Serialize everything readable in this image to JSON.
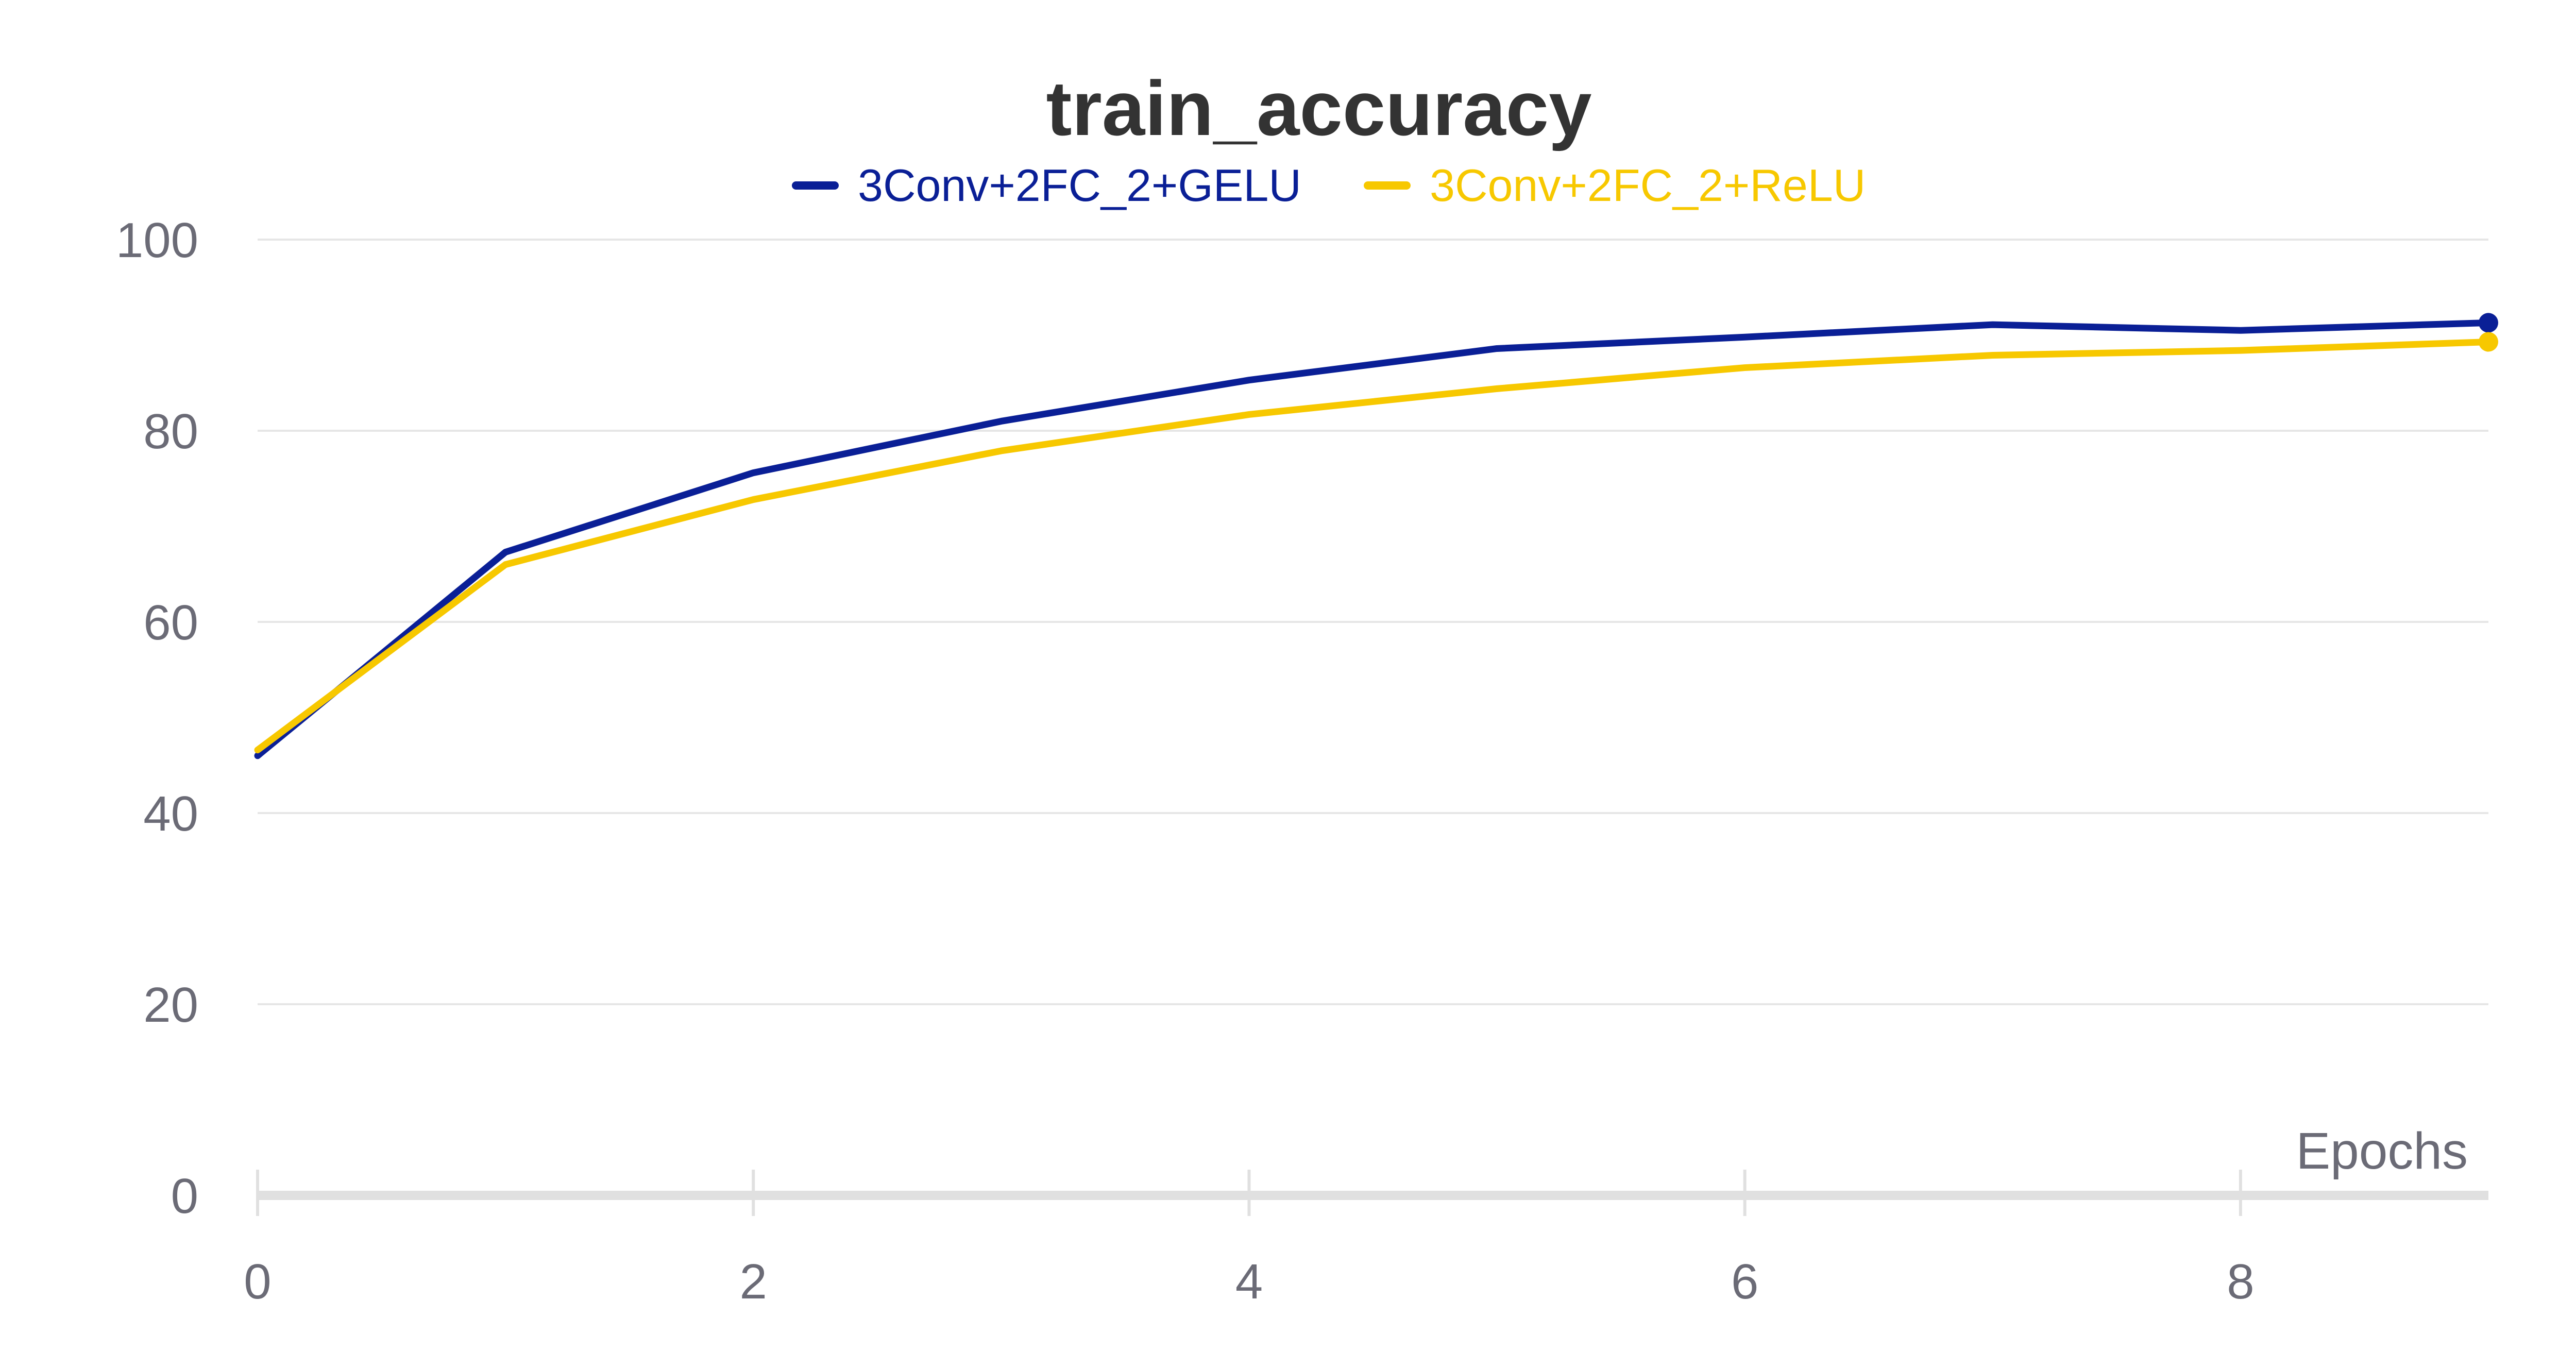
{
  "chart_data": {
    "type": "line",
    "title": "train_accuracy",
    "xlabel": "Epochs",
    "ylabel": "",
    "x": [
      0,
      1,
      2,
      3,
      4,
      5,
      6,
      7,
      8,
      9
    ],
    "xlim": [
      0,
      9
    ],
    "ylim": [
      0,
      100
    ],
    "x_ticks": [
      0,
      2,
      4,
      6,
      8
    ],
    "y_ticks": [
      0,
      20,
      40,
      60,
      80,
      100
    ],
    "grid": true,
    "legend_position": "top-center",
    "series": [
      {
        "name": "3Conv+2FC_2+GELU",
        "color": "#0a1f96",
        "values": [
          46,
          67.3,
          75.6,
          81,
          85.3,
          88.6,
          89.8,
          91.1,
          90.5,
          91.3
        ]
      },
      {
        "name": "3Conv+2FC_2+ReLU",
        "color": "#f7c800",
        "values": [
          46.6,
          66,
          72.8,
          77.9,
          81.7,
          84.4,
          86.6,
          87.9,
          88.4,
          89.3
        ]
      }
    ]
  }
}
